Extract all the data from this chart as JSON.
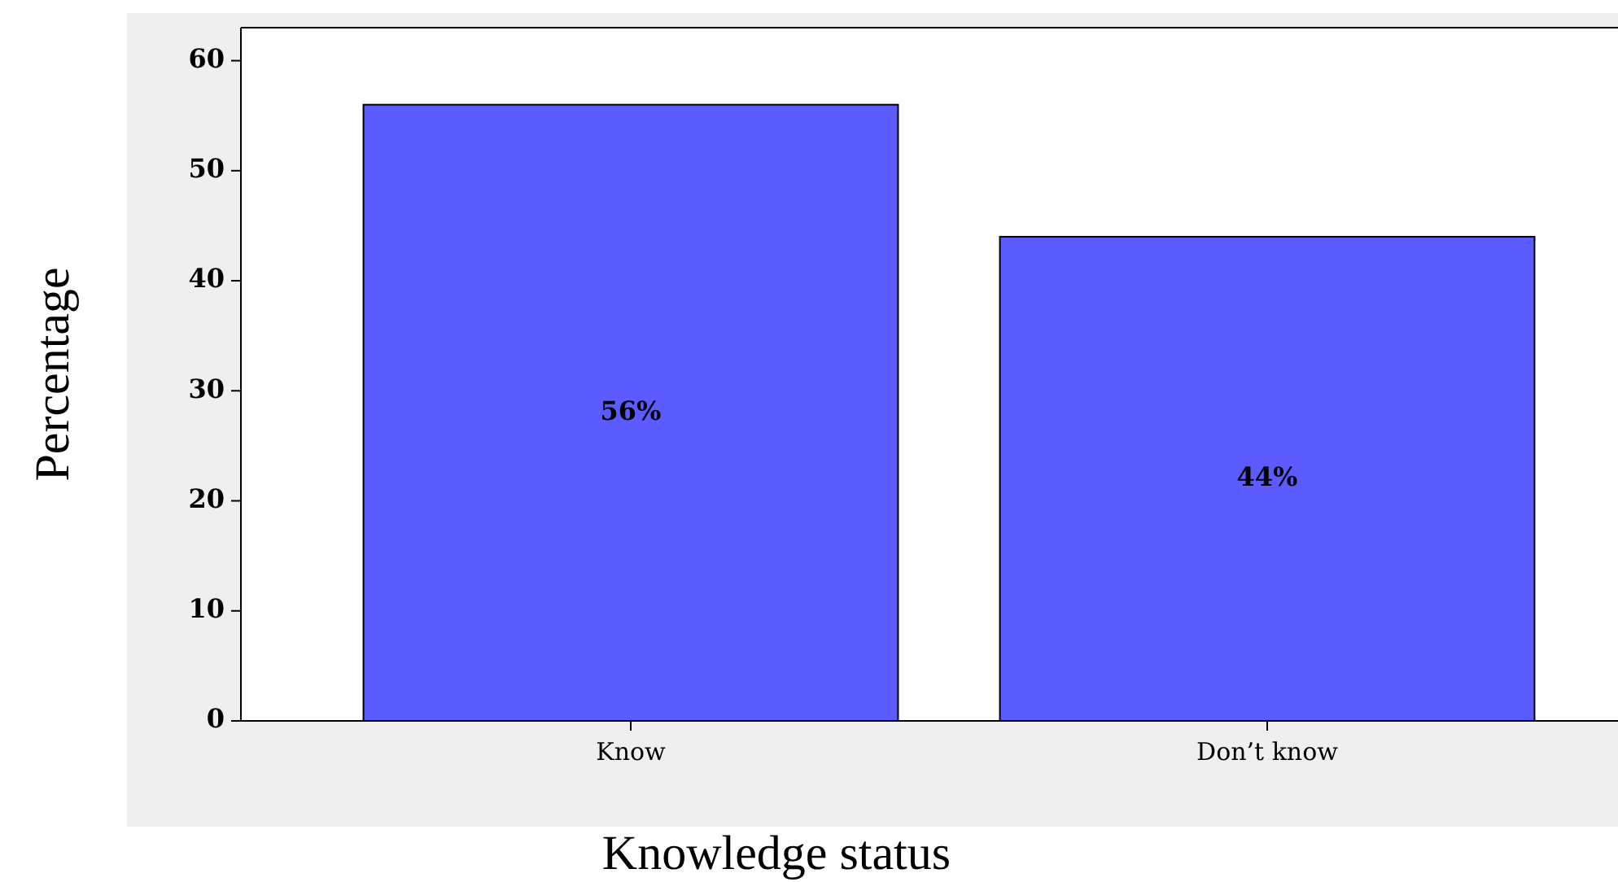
{
  "chart_data": {
    "type": "bar",
    "xlabel": "Knowledge status",
    "ylabel": "Percentage",
    "categories": [
      "Know",
      "Don’t know"
    ],
    "values": [
      56,
      44
    ],
    "value_labels": [
      "56%",
      "44%"
    ],
    "color": "#5b5bff",
    "ylim": [
      0,
      63
    ],
    "yticks": [
      0,
      10,
      20,
      30,
      40,
      50,
      60
    ],
    "grid": false
  }
}
